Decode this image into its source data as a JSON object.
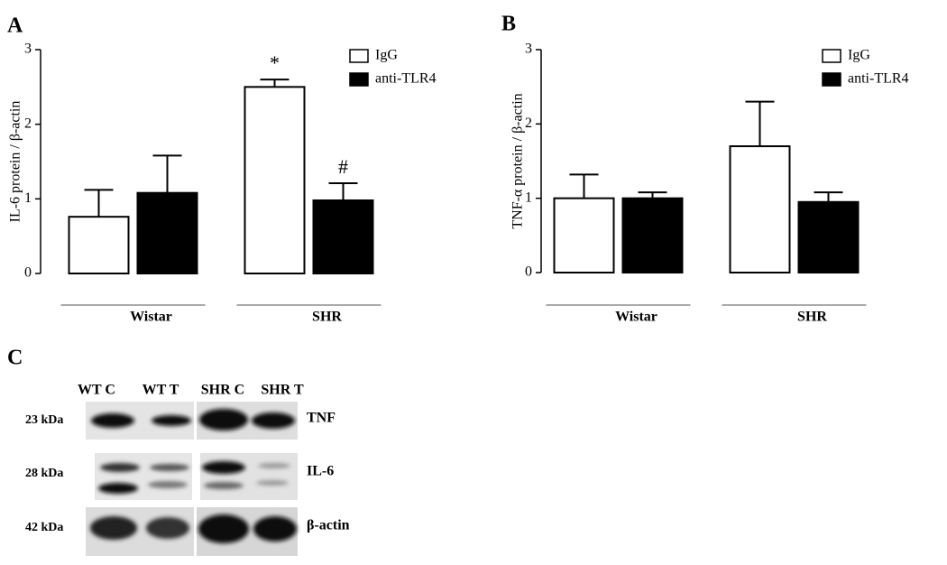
{
  "chart_data": [
    {
      "type": "bar",
      "panel_label": "A",
      "y_label": "IL-6 protein / β-actin",
      "categories": [
        "Wistar",
        "SHR"
      ],
      "series": [
        {
          "name": "IgG",
          "color": "#ffffff",
          "values": [
            0.76,
            2.5
          ],
          "errors": [
            0.36,
            0.1
          ]
        },
        {
          "name": "anti-TLR4",
          "color": "#000000",
          "values": [
            1.08,
            0.98
          ],
          "errors": [
            0.5,
            0.23
          ]
        }
      ],
      "annotations": [
        {
          "text": "*",
          "category": "SHR",
          "series": "IgG"
        },
        {
          "text": "#",
          "category": "SHR",
          "series": "anti-TLR4"
        }
      ],
      "ylim": [
        0,
        3
      ],
      "yticks": [
        0,
        1,
        2,
        3
      ],
      "legend": "upper right"
    },
    {
      "type": "bar",
      "panel_label": "B",
      "y_label": "TNF-α protein / β-actin",
      "categories": [
        "Wistar",
        "SHR"
      ],
      "series": [
        {
          "name": "IgG",
          "color": "#ffffff",
          "values": [
            1.0,
            1.7
          ],
          "errors": [
            0.32,
            0.6
          ]
        },
        {
          "name": "anti-TLR4",
          "color": "#000000",
          "values": [
            1.0,
            0.95
          ],
          "errors": [
            0.08,
            0.13
          ]
        }
      ],
      "ylim": [
        0,
        3
      ],
      "yticks": [
        0,
        1,
        2,
        3
      ],
      "legend": "upper right"
    }
  ],
  "blot": {
    "panel_label": "C",
    "lanes": [
      "WT C",
      "WT T",
      "SHR C",
      "SHR T"
    ],
    "markers": [
      "23 kDa",
      "28 kDa",
      "42 kDa"
    ],
    "proteins": [
      "TNF",
      "IL-6",
      "β-actin"
    ]
  }
}
